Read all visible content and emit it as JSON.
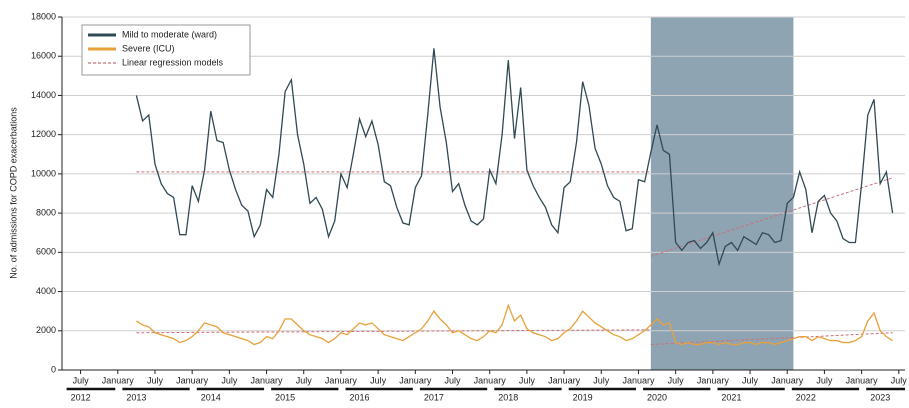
{
  "chart_data": {
    "type": "line",
    "y_label": "No. of admissions for COPD exacerbations",
    "ylim": [
      0,
      18000
    ],
    "yticks": [
      0,
      2000,
      4000,
      6000,
      8000,
      10000,
      12000,
      14000,
      16000,
      18000
    ],
    "grid": true,
    "xlim": [
      "2012-04",
      "2023-08"
    ],
    "xticks": [
      {
        "value": "2012-07",
        "label": "July"
      },
      {
        "value": "2013-01",
        "label": "January"
      },
      {
        "value": "2013-07",
        "label": "July"
      },
      {
        "value": "2014-01",
        "label": "January"
      },
      {
        "value": "2014-07",
        "label": "July"
      },
      {
        "value": "2015-01",
        "label": "January"
      },
      {
        "value": "2015-07",
        "label": "July"
      },
      {
        "value": "2016-01",
        "label": "January"
      },
      {
        "value": "2016-07",
        "label": "July"
      },
      {
        "value": "2017-01",
        "label": "January"
      },
      {
        "value": "2017-07",
        "label": "July"
      },
      {
        "value": "2018-01",
        "label": "January"
      },
      {
        "value": "2018-07",
        "label": "July"
      },
      {
        "value": "2019-01",
        "label": "January"
      },
      {
        "value": "2019-07",
        "label": "July"
      },
      {
        "value": "2020-01",
        "label": "January"
      },
      {
        "value": "2020-07",
        "label": "July"
      },
      {
        "value": "2021-01",
        "label": "January"
      },
      {
        "value": "2021-07",
        "label": "July"
      },
      {
        "value": "2022-01",
        "label": "January"
      },
      {
        "value": "2022-07",
        "label": "July"
      },
      {
        "value": "2023-01",
        "label": "January"
      },
      {
        "value": "2023-07",
        "label": "July"
      }
    ],
    "year_labels": [
      {
        "value": "2012-07",
        "label": "2012"
      },
      {
        "value": "2013-04",
        "label": "2013"
      },
      {
        "value": "2014-04",
        "label": "2014"
      },
      {
        "value": "2015-04",
        "label": "2015"
      },
      {
        "value": "2016-04",
        "label": "2016"
      },
      {
        "value": "2017-04",
        "label": "2017"
      },
      {
        "value": "2018-04",
        "label": "2018"
      },
      {
        "value": "2019-04",
        "label": "2019"
      },
      {
        "value": "2020-04",
        "label": "2020"
      },
      {
        "value": "2021-04",
        "label": "2021"
      },
      {
        "value": "2022-04",
        "label": "2022"
      },
      {
        "value": "2023-04",
        "label": "2023"
      }
    ],
    "shaded": {
      "x": [
        "2020-03",
        "2022-02"
      ],
      "color": "#8fa4b3"
    },
    "legend": "upper left",
    "x": [
      "2013-04",
      "2013-05",
      "2013-06",
      "2013-07",
      "2013-08",
      "2013-09",
      "2013-10",
      "2013-11",
      "2013-12",
      "2014-01",
      "2014-02",
      "2014-03",
      "2014-04",
      "2014-05",
      "2014-06",
      "2014-07",
      "2014-08",
      "2014-09",
      "2014-10",
      "2014-11",
      "2014-12",
      "2015-01",
      "2015-02",
      "2015-03",
      "2015-04",
      "2015-05",
      "2015-06",
      "2015-07",
      "2015-08",
      "2015-09",
      "2015-10",
      "2015-11",
      "2015-12",
      "2016-01",
      "2016-02",
      "2016-03",
      "2016-04",
      "2016-05",
      "2016-06",
      "2016-07",
      "2016-08",
      "2016-09",
      "2016-10",
      "2016-11",
      "2016-12",
      "2017-01",
      "2017-02",
      "2017-03",
      "2017-04",
      "2017-05",
      "2017-06",
      "2017-07",
      "2017-08",
      "2017-09",
      "2017-10",
      "2017-11",
      "2017-12",
      "2018-01",
      "2018-02",
      "2018-03",
      "2018-04",
      "2018-05",
      "2018-06",
      "2018-07",
      "2018-08",
      "2018-09",
      "2018-10",
      "2018-11",
      "2018-12",
      "2019-01",
      "2019-02",
      "2019-03",
      "2019-04",
      "2019-05",
      "2019-06",
      "2019-07",
      "2019-08",
      "2019-09",
      "2019-10",
      "2019-11",
      "2019-12",
      "2020-01",
      "2020-02",
      "2020-03",
      "2020-04",
      "2020-05",
      "2020-06",
      "2020-07",
      "2020-08",
      "2020-09",
      "2020-10",
      "2020-11",
      "2020-12",
      "2021-01",
      "2021-02",
      "2021-03",
      "2021-04",
      "2021-05",
      "2021-06",
      "2021-07",
      "2021-08",
      "2021-09",
      "2021-10",
      "2021-11",
      "2021-12",
      "2022-01",
      "2022-02",
      "2022-03",
      "2022-04",
      "2022-05",
      "2022-06",
      "2022-07",
      "2022-08",
      "2022-09",
      "2022-10",
      "2022-11",
      "2022-12",
      "2023-01",
      "2023-02",
      "2023-03",
      "2023-04",
      "2023-05",
      "2023-06"
    ],
    "series": [
      {
        "name": "Mild to moderate (ward)",
        "color": "#2f4a55",
        "values": [
          14000,
          12700,
          13000,
          10500,
          9500,
          9000,
          8800,
          6900,
          6900,
          9400,
          8600,
          10200,
          13200,
          11700,
          11600,
          10200,
          9200,
          8400,
          8100,
          6800,
          7400,
          9200,
          8800,
          11000,
          14200,
          14800,
          12000,
          10500,
          8500,
          8800,
          8200,
          6800,
          7600,
          10000,
          9300,
          11000,
          12800,
          11900,
          12700,
          11500,
          9600,
          9400,
          8300,
          7500,
          7400,
          9300,
          9900,
          13000,
          16400,
          13400,
          11600,
          9100,
          9500,
          8400,
          7600,
          7400,
          7700,
          10200,
          9500,
          12000,
          15800,
          11800,
          14400,
          10200,
          9400,
          8800,
          8300,
          7400,
          7000,
          9300,
          9600,
          11600,
          14700,
          13500,
          11300,
          10500,
          9400,
          8800,
          8600,
          7100,
          7200,
          9700,
          9600,
          11100,
          12500,
          11200,
          11000,
          6500,
          6100,
          6500,
          6600,
          6200,
          6500,
          7000,
          5400,
          6300,
          6500,
          6100,
          6800,
          6600,
          6400,
          7000,
          6900,
          6500,
          6600,
          8500,
          8800,
          10100,
          9200,
          7000,
          8600,
          8900,
          8000,
          7600,
          6700,
          6500,
          6500,
          9500,
          13000,
          13800,
          9500,
          10100,
          8000
        ]
      },
      {
        "name": "Severe (ICU)",
        "color": "#e8a13a",
        "values": [
          2500,
          2300,
          2200,
          1900,
          1800,
          1700,
          1600,
          1400,
          1500,
          1700,
          2000,
          2400,
          2300,
          2200,
          1900,
          1800,
          1700,
          1600,
          1500,
          1300,
          1400,
          1700,
          1600,
          2000,
          2600,
          2600,
          2300,
          2000,
          1800,
          1700,
          1600,
          1400,
          1600,
          1900,
          1800,
          2100,
          2400,
          2300,
          2400,
          2100,
          1800,
          1700,
          1600,
          1500,
          1700,
          1900,
          2100,
          2500,
          3000,
          2600,
          2300,
          1900,
          2000,
          1800,
          1600,
          1500,
          1700,
          2000,
          1900,
          2300,
          3300,
          2500,
          2800,
          2100,
          1900,
          1800,
          1700,
          1500,
          1600,
          1900,
          2100,
          2500,
          3000,
          2700,
          2400,
          2200,
          2000,
          1800,
          1700,
          1500,
          1600,
          1800,
          2000,
          2300,
          2600,
          2300,
          2400,
          1400,
          1300,
          1400,
          1300,
          1300,
          1400,
          1400,
          1300,
          1400,
          1300,
          1300,
          1400,
          1400,
          1300,
          1400,
          1400,
          1300,
          1400,
          1500,
          1600,
          1700,
          1700,
          1500,
          1700,
          1600,
          1500,
          1500,
          1400,
          1400,
          1500,
          1700,
          2500,
          2900,
          2000,
          1700,
          1500
        ]
      }
    ],
    "regression": {
      "name": "Linear regression models",
      "color": "#c9707a",
      "lines": [
        {
          "x": [
            "2013-04",
            "2020-03"
          ],
          "values": [
            10100,
            10100
          ]
        },
        {
          "x": [
            "2020-03",
            "2023-06"
          ],
          "values": [
            5800,
            9800
          ]
        },
        {
          "x": [
            "2013-04",
            "2020-03"
          ],
          "values": [
            1900,
            2050
          ]
        },
        {
          "x": [
            "2020-03",
            "2023-06"
          ],
          "values": [
            1300,
            1900
          ]
        }
      ]
    }
  }
}
